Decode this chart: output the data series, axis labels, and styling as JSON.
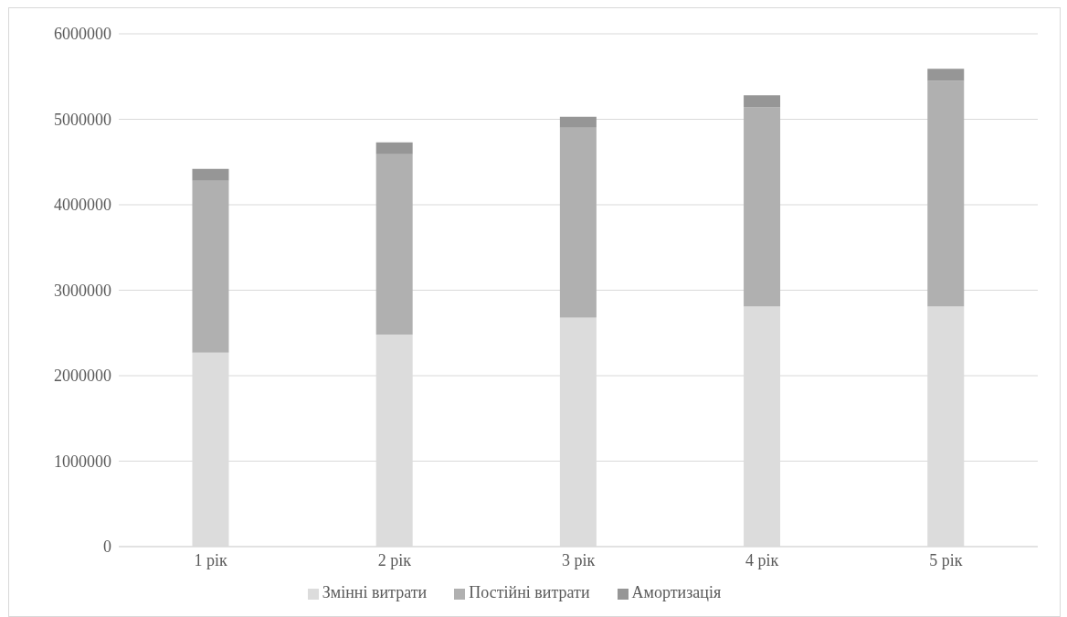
{
  "chart_data": {
    "type": "bar",
    "stacked": true,
    "categories": [
      "1 рік",
      "2 рік",
      "3 рік",
      "4 рік",
      "5 рік"
    ],
    "series": [
      {
        "name": "Змінні витрати",
        "color": "#dcdcdc",
        "values": [
          2270000,
          2480000,
          2680000,
          2810000,
          2810000
        ]
      },
      {
        "name": "Постійні витрати",
        "color": "#b0b0b0",
        "values": [
          2010000,
          2110000,
          2220000,
          2330000,
          2640000
        ]
      },
      {
        "name": "Амортизація",
        "color": "#969696",
        "values": [
          140000,
          140000,
          130000,
          140000,
          140000
        ]
      }
    ],
    "ylim": [
      0,
      6000000
    ],
    "yticks": [
      0,
      1000000,
      2000000,
      3000000,
      4000000,
      5000000,
      6000000
    ],
    "grid": "y",
    "legend": "bottom"
  }
}
